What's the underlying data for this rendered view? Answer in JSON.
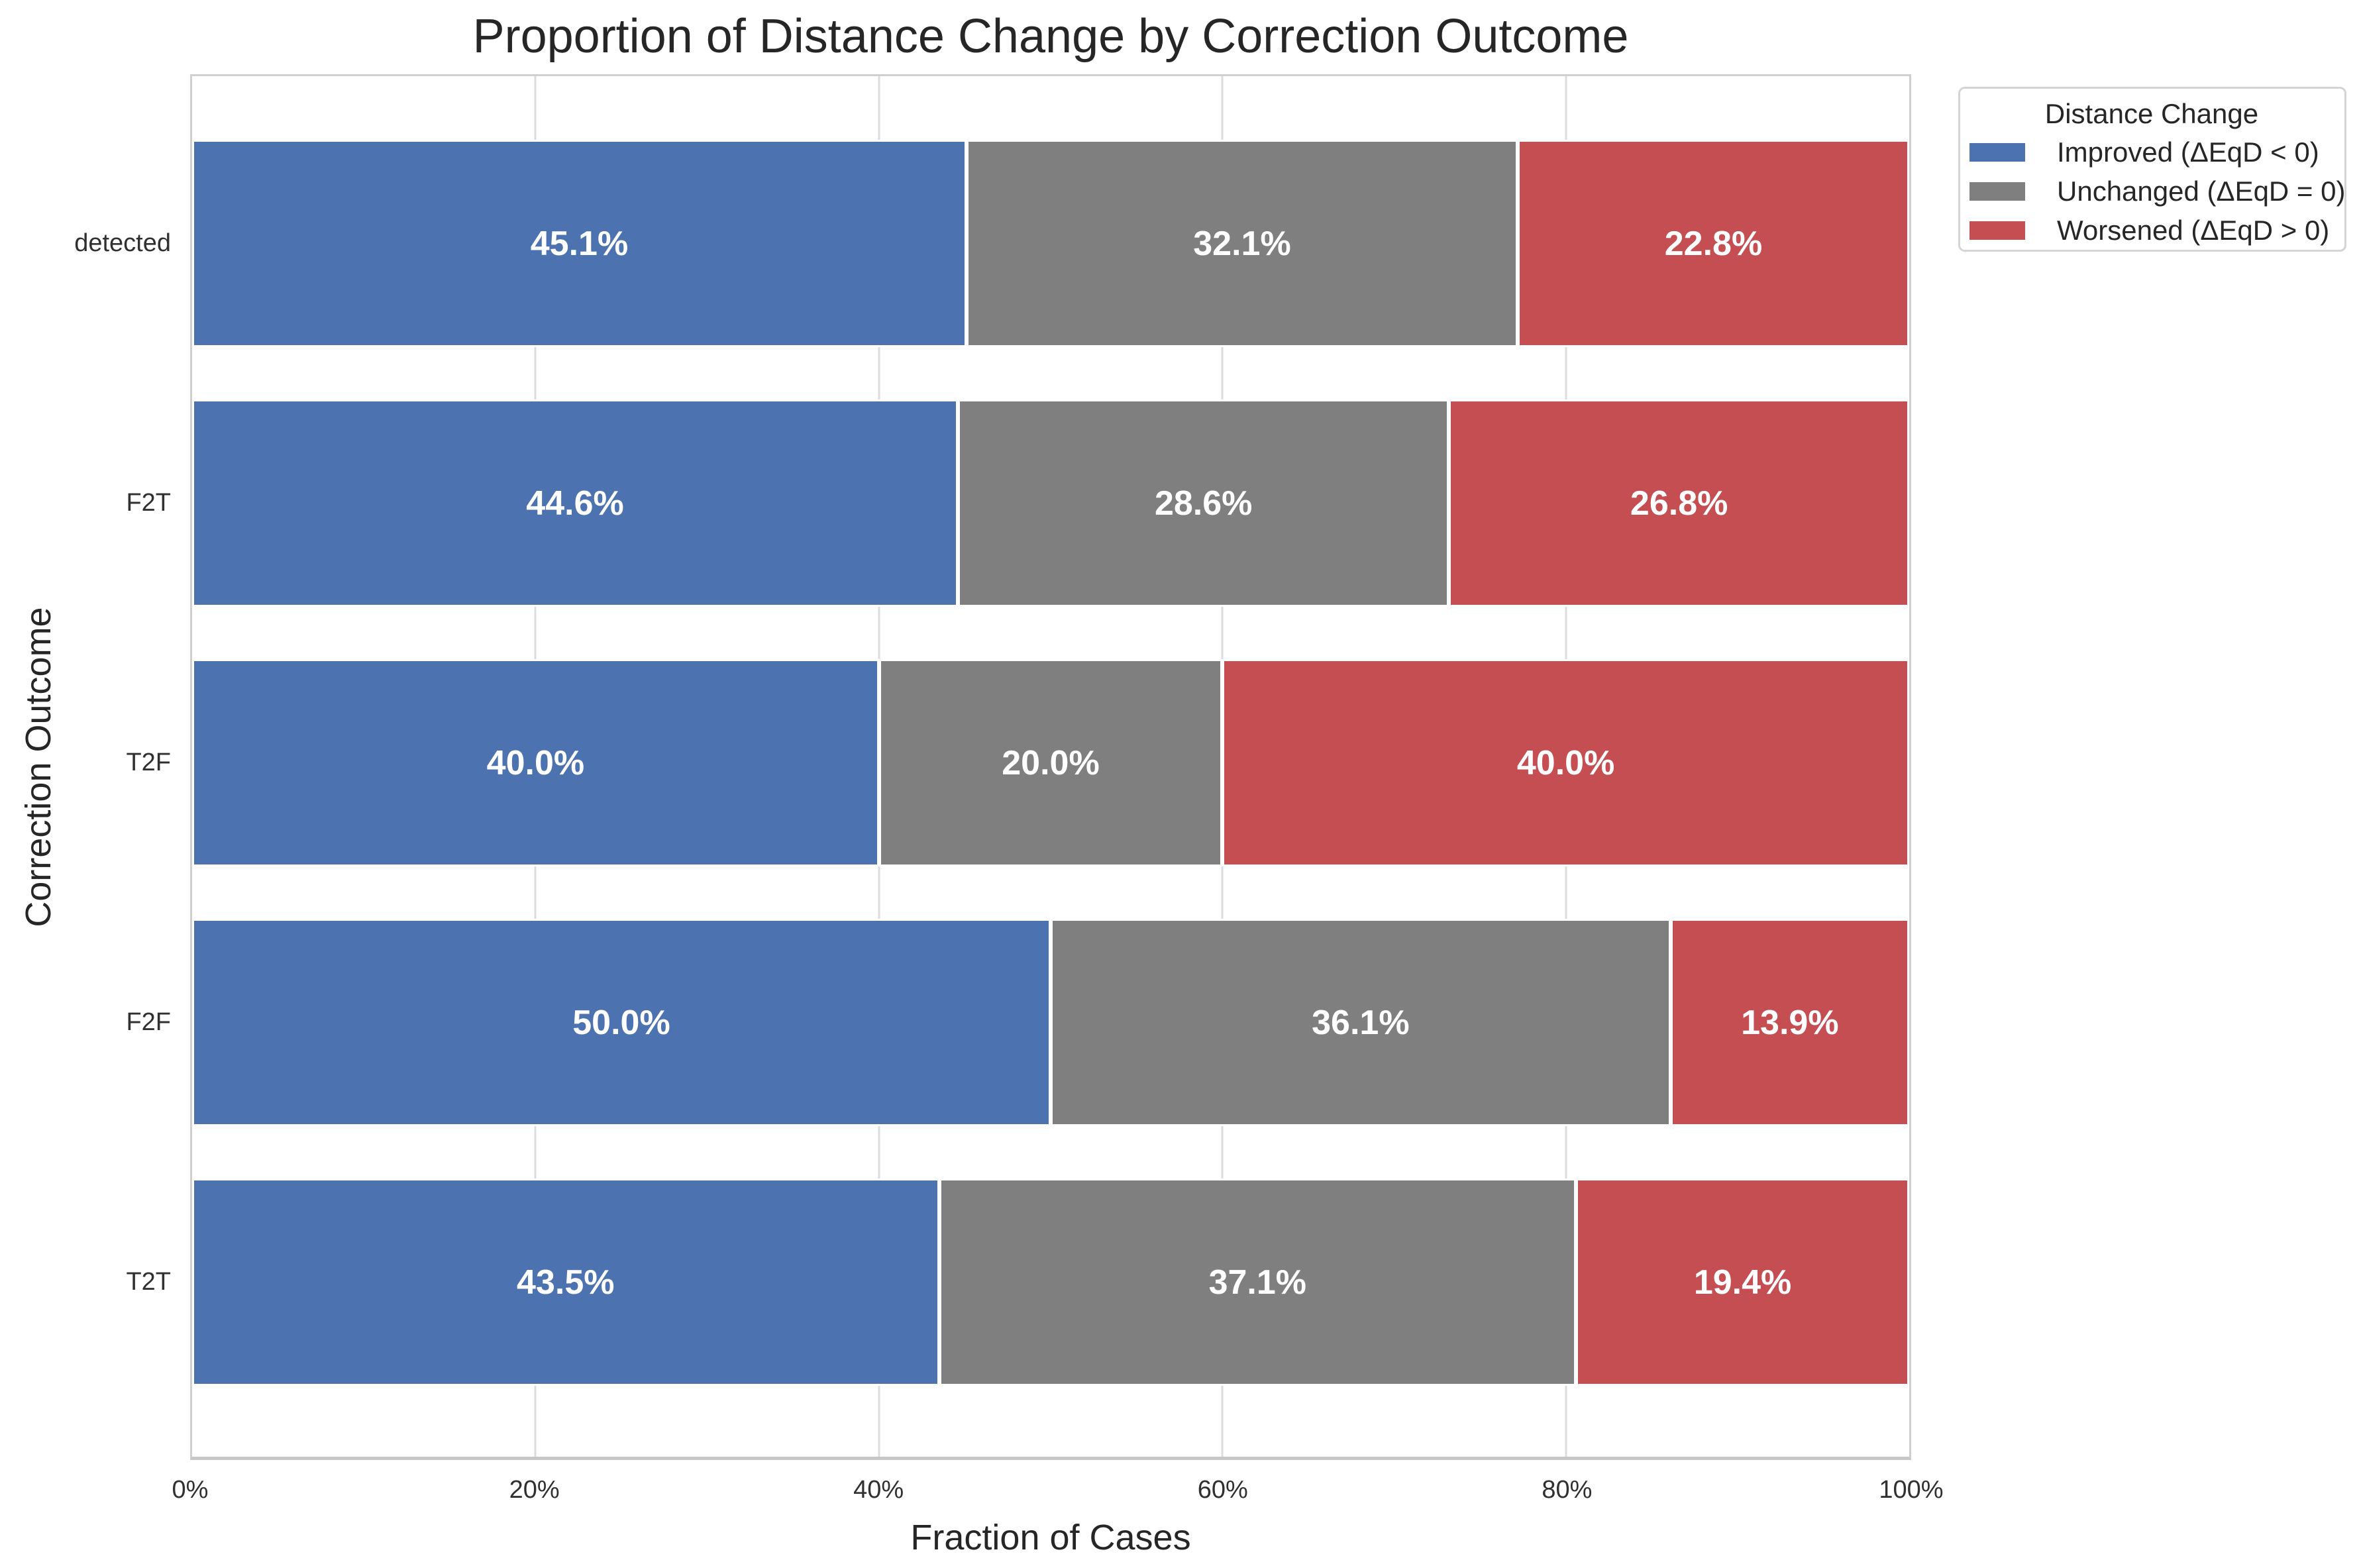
{
  "title": "Proportion of Distance Change by Correction Outcome",
  "chart_data": {
    "type": "bar",
    "orientation": "horizontal",
    "stacked": true,
    "title": "Proportion of Distance Change by Correction Outcome",
    "xlabel": "Fraction of Cases",
    "ylabel": "Correction Outcome",
    "categories": [
      "detected",
      "F2T",
      "T2F",
      "F2F",
      "T2T"
    ],
    "series": [
      {
        "name": "Improved (ΔEqD < 0)",
        "color": "#4C72B0",
        "values": [
          45.1,
          44.6,
          40.0,
          50.0,
          43.5
        ]
      },
      {
        "name": "Unchanged (ΔEqD = 0)",
        "color": "#7F7F7F",
        "values": [
          32.1,
          28.6,
          20.0,
          36.1,
          37.1
        ]
      },
      {
        "name": "Worsened (ΔEqD > 0)",
        "color": "#C44E52",
        "values": [
          22.8,
          26.8,
          40.0,
          13.9,
          19.4
        ]
      }
    ],
    "bar_label_suffix": "%",
    "x_ticks": [
      {
        "label": "0%",
        "value": 0
      },
      {
        "label": "20%",
        "value": 20
      },
      {
        "label": "40%",
        "value": 40
      },
      {
        "label": "60%",
        "value": 60
      },
      {
        "label": "80%",
        "value": 80
      },
      {
        "label": "100%",
        "value": 100
      }
    ],
    "xlim": [
      0,
      100
    ],
    "grid": true,
    "legend": {
      "title": "Distance Change",
      "position": "outside-upper-right"
    },
    "style": {
      "grid_color": "#dcdcdc",
      "spine_color": "#cfcfcf",
      "bar_edge_color": "#ffffff",
      "bar_label_color": "#ffffff",
      "text_color": "#262626"
    }
  }
}
